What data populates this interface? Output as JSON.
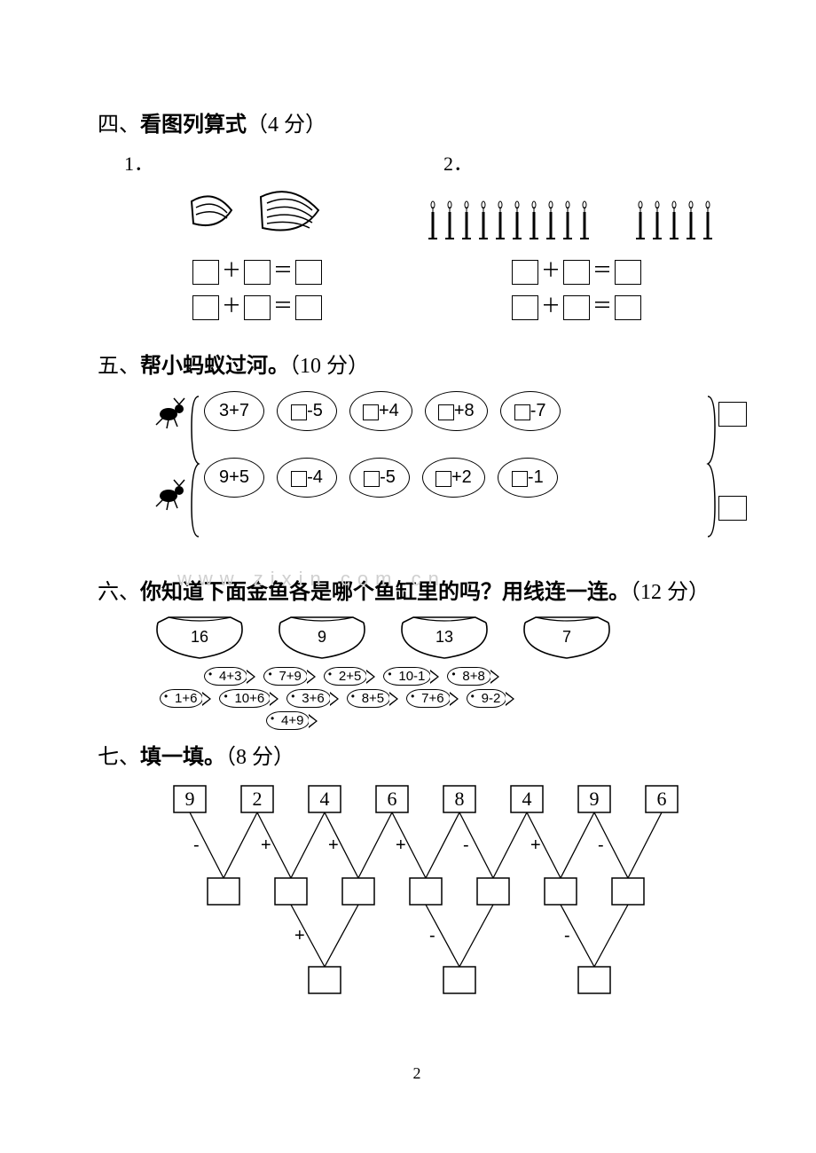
{
  "page_number": "2",
  "colors": {
    "text": "#000000",
    "bg": "#ffffff",
    "watermark": "#d0d0d0"
  },
  "watermark_text": "www zixin com cn",
  "sec4": {
    "title_prefix": "四、",
    "title_bold": "看图列算式",
    "title_suffix": "（4 分）",
    "col1_label": "1．",
    "col2_label": "2．",
    "banana_bunch_count": 2,
    "bananas_each": [
      3,
      5
    ],
    "candle_groups": [
      10,
      5
    ],
    "op": "＋",
    "eq": "＝"
  },
  "sec5": {
    "title_prefix": "五、",
    "title_bold": "帮小蚂蚁过河。",
    "title_suffix": "（10 分）",
    "row1": [
      "3+7",
      "□-5",
      "□+4",
      "□+8",
      "□-7"
    ],
    "row2": [
      "9+5",
      "□-4",
      "□-5",
      "□+2",
      "□-1"
    ]
  },
  "sec6": {
    "title_prefix": "六、",
    "title_bold": "你知道下面金鱼各是哪个鱼缸里的吗？用线连一连。",
    "title_suffix": "（12 分）",
    "bowls": [
      "16",
      "9",
      "13",
      "7"
    ],
    "fish_line1": [
      "4+3",
      "7+9",
      "2+5",
      "10-1",
      "8+8"
    ],
    "fish_line2": [
      "1+6",
      "10+6",
      "3+6",
      "8+5",
      "7+6",
      "9-2"
    ],
    "fish_line3": [
      "4+9"
    ]
  },
  "sec7": {
    "title_prefix": "七、",
    "title_bold": "填一填。",
    "title_suffix": "（8 分）",
    "top_numbers": [
      "9",
      "2",
      "4",
      "6",
      "8",
      "4",
      "9",
      "6"
    ],
    "mid_ops": [
      "-",
      "+",
      "+",
      "+",
      "-",
      "+",
      "-"
    ],
    "bot_ops": [
      "+",
      "-",
      "-"
    ]
  }
}
